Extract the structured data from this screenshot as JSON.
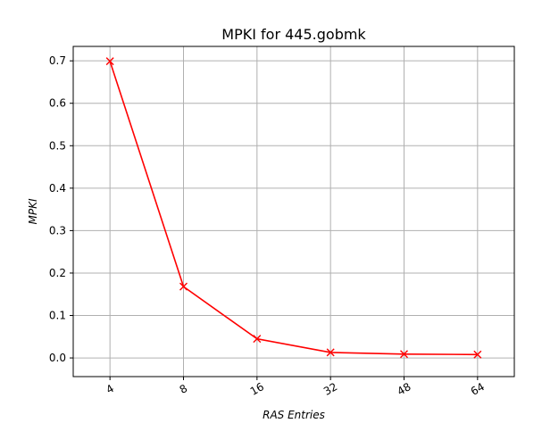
{
  "chart_data": {
    "type": "line",
    "title": "MPKI for 445.gobmk",
    "xlabel": "RAS Entries",
    "ylabel": "MPKI",
    "categories": [
      "4",
      "8",
      "16",
      "32",
      "48",
      "64"
    ],
    "series": [
      {
        "values": [
          0.699,
          0.168,
          0.045,
          0.013,
          0.009,
          0.008
        ],
        "color": "#ff0000",
        "marker": "x"
      }
    ],
    "ylim": [
      -0.044,
      0.734
    ],
    "yticks": [
      "0.0",
      "0.1",
      "0.2",
      "0.3",
      "0.4",
      "0.5",
      "0.6",
      "0.7"
    ],
    "ytick_values": [
      0.0,
      0.1,
      0.2,
      0.3,
      0.4,
      0.5,
      0.6,
      0.7
    ],
    "x_tick_rotation": -30,
    "grid": true,
    "grid_color": "#b0b0b0"
  }
}
